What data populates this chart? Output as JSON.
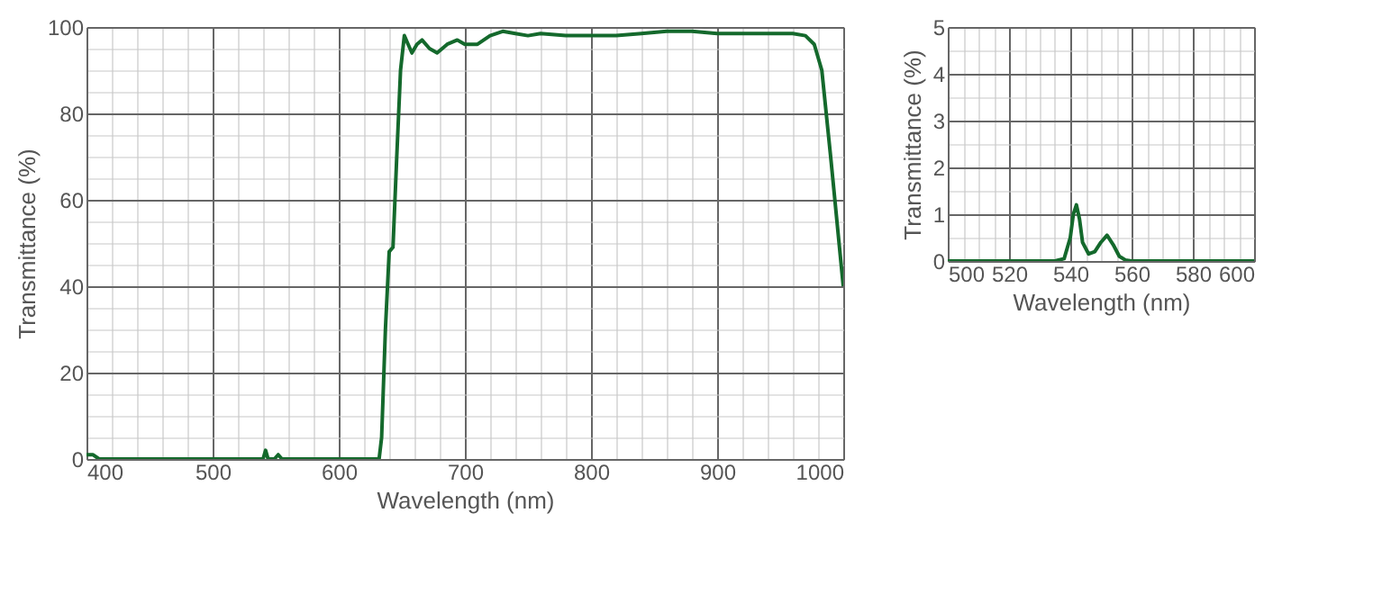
{
  "chart_data": [
    {
      "type": "line",
      "xlabel": "Wavelength (nm)",
      "ylabel": "Transmittance (%)",
      "xlim": [
        400,
        1000
      ],
      "ylim": [
        0,
        100
      ],
      "grid": true,
      "xticks": [
        400,
        {
          "value": 420,
          "label": null
        },
        {
          "value": 440,
          "label": null
        },
        {
          "value": 460,
          "label": null
        },
        {
          "value": 480,
          "label": null
        },
        500,
        {
          "value": 520,
          "label": null
        },
        {
          "value": 540,
          "label": null
        },
        {
          "value": 560,
          "label": null
        },
        {
          "value": 580,
          "label": null
        },
        600,
        {
          "value": 620,
          "label": null
        },
        {
          "value": 640,
          "label": null
        },
        {
          "value": 660,
          "label": null
        },
        {
          "value": 680,
          "label": null
        },
        700,
        {
          "value": 720,
          "label": null
        },
        {
          "value": 740,
          "label": null
        },
        {
          "value": 760,
          "label": null
        },
        {
          "value": 780,
          "label": null
        },
        800,
        {
          "value": 820,
          "label": null
        },
        {
          "value": 840,
          "label": null
        },
        {
          "value": 860,
          "label": null
        },
        {
          "value": 880,
          "label": null
        },
        900,
        {
          "value": 920,
          "label": null
        },
        {
          "value": 940,
          "label": null
        },
        {
          "value": 960,
          "label": null
        },
        {
          "value": 980,
          "label": null
        },
        1000
      ],
      "yticks": [
        0,
        {
          "value": 5,
          "label": null
        },
        {
          "value": 10,
          "label": null
        },
        {
          "value": 15,
          "label": null
        },
        20,
        {
          "value": 25,
          "label": null
        },
        {
          "value": 30,
          "label": null
        },
        {
          "value": 35,
          "label": null
        },
        40,
        {
          "value": 45,
          "label": null
        },
        {
          "value": 50,
          "label": null
        },
        {
          "value": 55,
          "label": null
        },
        60,
        {
          "value": 65,
          "label": null
        },
        {
          "value": 70,
          "label": null
        },
        {
          "value": 75,
          "label": null
        },
        80,
        {
          "value": 85,
          "label": null
        },
        {
          "value": 90,
          "label": null
        },
        {
          "value": 95,
          "label": null
        },
        100
      ],
      "series": [
        {
          "color": "#14692c",
          "x": [
            400,
            405,
            410,
            535,
            540,
            542,
            544,
            546,
            549,
            552,
            555,
            558,
            632,
            634,
            637,
            640,
            643,
            646,
            649,
            652,
            655,
            658,
            662,
            666,
            672,
            678,
            686,
            694,
            700,
            710,
            720,
            730,
            740,
            750,
            760,
            780,
            800,
            820,
            840,
            860,
            880,
            900,
            920,
            940,
            960,
            970,
            977,
            983,
            990,
            995,
            1000
          ],
          "values": [
            1,
            1,
            0,
            0,
            0,
            2,
            0,
            0,
            0,
            1,
            0,
            0,
            0,
            5,
            30,
            48,
            49,
            70,
            90,
            98,
            96,
            94,
            96,
            97,
            95,
            94,
            96,
            97,
            96,
            96,
            98,
            99,
            98.5,
            98,
            98.5,
            98,
            98,
            98,
            98.5,
            99,
            99,
            98.5,
            98.5,
            98.5,
            98.5,
            98,
            96,
            90,
            70,
            55,
            40
          ]
        }
      ]
    },
    {
      "type": "line",
      "xlabel": "Wavelength (nm)",
      "ylabel": "Transmittance (%)",
      "xlim": [
        500,
        600
      ],
      "ylim": [
        0,
        5
      ],
      "grid": true,
      "xticks": [
        500,
        {
          "value": 505,
          "label": null
        },
        {
          "value": 510,
          "label": null
        },
        {
          "value": 515,
          "label": null
        },
        520,
        {
          "value": 525,
          "label": null
        },
        {
          "value": 530,
          "label": null
        },
        {
          "value": 535,
          "label": null
        },
        540,
        {
          "value": 545,
          "label": null
        },
        {
          "value": 550,
          "label": null
        },
        {
          "value": 555,
          "label": null
        },
        560,
        {
          "value": 565,
          "label": null
        },
        {
          "value": 570,
          "label": null
        },
        {
          "value": 575,
          "label": null
        },
        580,
        {
          "value": 585,
          "label": null
        },
        {
          "value": 590,
          "label": null
        },
        {
          "value": 595,
          "label": null
        },
        600
      ],
      "yticks": [
        0,
        {
          "value": 0.5,
          "label": null
        },
        1,
        {
          "value": 1.5,
          "label": null
        },
        2,
        {
          "value": 2.5,
          "label": null
        },
        3,
        {
          "value": 3.5,
          "label": null
        },
        4,
        {
          "value": 4.5,
          "label": null
        },
        5
      ],
      "series": [
        {
          "color": "#14692c",
          "x": [
            500,
            535,
            538,
            540,
            541,
            542,
            543,
            544,
            546,
            548,
            550,
            552,
            554,
            556,
            558,
            560,
            600
          ],
          "values": [
            0,
            0,
            0.05,
            0.5,
            1.0,
            1.2,
            0.9,
            0.4,
            0.15,
            0.2,
            0.4,
            0.55,
            0.35,
            0.1,
            0.02,
            0,
            0
          ]
        }
      ]
    }
  ]
}
